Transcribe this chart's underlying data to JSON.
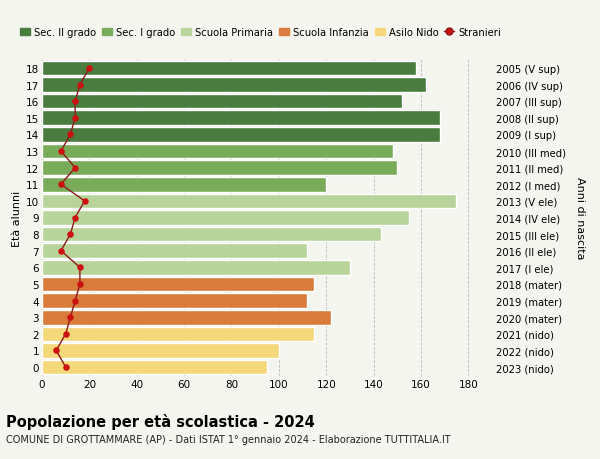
{
  "ages": [
    18,
    17,
    16,
    15,
    14,
    13,
    12,
    11,
    10,
    9,
    8,
    7,
    6,
    5,
    4,
    3,
    2,
    1,
    0
  ],
  "right_labels": [
    "2005 (V sup)",
    "2006 (IV sup)",
    "2007 (III sup)",
    "2008 (II sup)",
    "2009 (I sup)",
    "2010 (III med)",
    "2011 (II med)",
    "2012 (I med)",
    "2013 (V ele)",
    "2014 (IV ele)",
    "2015 (III ele)",
    "2016 (II ele)",
    "2017 (I ele)",
    "2018 (mater)",
    "2019 (mater)",
    "2020 (mater)",
    "2021 (nido)",
    "2022 (nido)",
    "2023 (nido)"
  ],
  "bar_values": [
    158,
    162,
    152,
    168,
    168,
    148,
    150,
    120,
    175,
    155,
    143,
    112,
    130,
    115,
    112,
    122,
    115,
    100,
    95
  ],
  "bar_colors": [
    "#4a7c3f",
    "#4a7c3f",
    "#4a7c3f",
    "#4a7c3f",
    "#4a7c3f",
    "#7aab5a",
    "#7aab5a",
    "#7aab5a",
    "#b8d49b",
    "#b8d49b",
    "#b8d49b",
    "#b8d49b",
    "#b8d49b",
    "#d97b3a",
    "#d97b3a",
    "#d97b3a",
    "#f5d87a",
    "#f5d87a",
    "#f5d87a"
  ],
  "stranieri_values": [
    20,
    16,
    14,
    14,
    12,
    8,
    14,
    8,
    18,
    14,
    12,
    8,
    16,
    16,
    14,
    12,
    10,
    6,
    10
  ],
  "legend_labels": [
    "Sec. II grado",
    "Sec. I grado",
    "Scuola Primaria",
    "Scuola Infanzia",
    "Asilo Nido",
    "Stranieri"
  ],
  "legend_colors": [
    "#4a7c3f",
    "#7aab5a",
    "#b8d49b",
    "#d97b3a",
    "#f5d87a",
    "#cc1111"
  ],
  "ylabel_left": "Età alunni",
  "ylabel_right": "Anni di nascita",
  "xlim": [
    0,
    190
  ],
  "xticks": [
    0,
    20,
    40,
    60,
    80,
    100,
    120,
    140,
    160,
    180
  ],
  "title": "Popolazione per età scolastica - 2024",
  "subtitle": "COMUNE DI GROTTAMMARE (AP) - Dati ISTAT 1° gennaio 2024 - Elaborazione TUTTITALIA.IT",
  "bg_color": "#f5f5f0",
  "bar_edge_color": "white",
  "grid_color": "#bbbbbb"
}
